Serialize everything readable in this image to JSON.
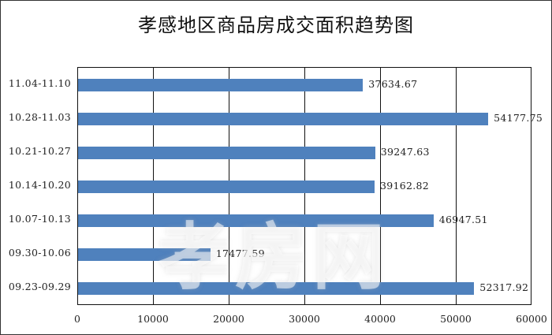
{
  "chart_data": {
    "type": "bar",
    "orientation": "horizontal",
    "title": "孝感地区商品房成交面积趋势图",
    "xlabel": "",
    "ylabel": "",
    "xlim": [
      0,
      60000
    ],
    "xticks": [
      "0",
      "10000",
      "20000",
      "30000",
      "40000",
      "50000",
      "60000"
    ],
    "grid": "vertical",
    "legend": null,
    "bar_color": "#4f81bd",
    "categories": [
      "11.04-11.10",
      "10.28-11.03",
      "10.21-10.27",
      "10.14-10.20",
      "10.07-10.13",
      "09.30-10.06",
      "09.23-09.29"
    ],
    "values": [
      37634.67,
      54177.75,
      39247.63,
      39162.82,
      46947.51,
      17477.59,
      52317.92
    ],
    "value_labels": [
      "37634.67",
      "54177.75",
      "39247.63",
      "39162.82",
      "46947.51",
      "17477.59",
      "52317.92"
    ]
  },
  "watermark": "孝房网"
}
